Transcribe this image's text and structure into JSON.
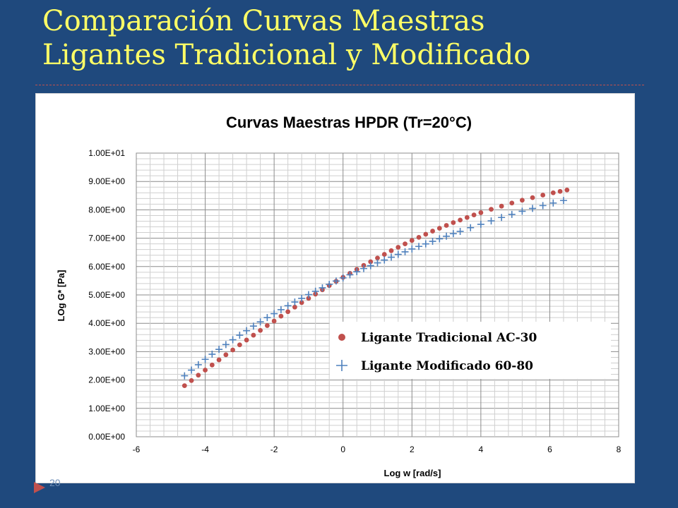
{
  "slide": {
    "title_line1": "Comparación Curvas Maestras",
    "title_line2": "Ligantes Tradicional y Modificado",
    "page_number": "20",
    "colors": {
      "background": "#1f497d",
      "title": "#ffff66",
      "accent": "#c0504d"
    }
  },
  "chart_data": {
    "type": "scatter",
    "title": "Curvas Maestras HPDR (Tr=20°C)",
    "xlabel": "Log w [rad/s]",
    "ylabel": "LOg G* [Pa]",
    "xlim": [
      -6,
      8
    ],
    "ylim": [
      0,
      10
    ],
    "x_ticks": [
      "-6",
      "-4",
      "-2",
      "0",
      "2",
      "4",
      "6",
      "8"
    ],
    "y_ticks": [
      "0.00E+00",
      "1.00E+00",
      "2.00E+00",
      "3.00E+00",
      "4.00E+00",
      "5.00E+00",
      "6.00E+00",
      "7.00E+00",
      "8.00E+00",
      "9.00E+00",
      "1.00E+01"
    ],
    "grid": true,
    "legend_position": "right-center",
    "series": [
      {
        "name": "Ligante Tradicional AC-30",
        "marker": "circle",
        "color": "#c0504d",
        "points": [
          [
            -4.6,
            1.8
          ],
          [
            -4.4,
            1.98
          ],
          [
            -4.2,
            2.17
          ],
          [
            -4.0,
            2.35
          ],
          [
            -3.8,
            2.53
          ],
          [
            -3.6,
            2.71
          ],
          [
            -3.4,
            2.89
          ],
          [
            -3.2,
            3.06
          ],
          [
            -3.0,
            3.24
          ],
          [
            -2.8,
            3.41
          ],
          [
            -2.6,
            3.58
          ],
          [
            -2.4,
            3.75
          ],
          [
            -2.2,
            3.92
          ],
          [
            -2.0,
            4.08
          ],
          [
            -1.8,
            4.25
          ],
          [
            -1.6,
            4.41
          ],
          [
            -1.4,
            4.57
          ],
          [
            -1.2,
            4.73
          ],
          [
            -1.0,
            4.88
          ],
          [
            -0.8,
            5.03
          ],
          [
            -0.6,
            5.18
          ],
          [
            -0.4,
            5.33
          ],
          [
            -0.2,
            5.48
          ],
          [
            0.0,
            5.62
          ],
          [
            0.2,
            5.76
          ],
          [
            0.4,
            5.9
          ],
          [
            0.6,
            6.04
          ],
          [
            0.8,
            6.17
          ],
          [
            1.0,
            6.3
          ],
          [
            1.2,
            6.43
          ],
          [
            1.4,
            6.56
          ],
          [
            1.6,
            6.68
          ],
          [
            1.8,
            6.8
          ],
          [
            2.0,
            6.92
          ],
          [
            2.2,
            7.03
          ],
          [
            2.4,
            7.14
          ],
          [
            2.6,
            7.25
          ],
          [
            2.8,
            7.35
          ],
          [
            3.0,
            7.45
          ],
          [
            3.2,
            7.55
          ],
          [
            3.4,
            7.64
          ],
          [
            3.6,
            7.73
          ],
          [
            3.8,
            7.82
          ],
          [
            4.0,
            7.9
          ],
          [
            4.3,
            8.02
          ],
          [
            4.6,
            8.13
          ],
          [
            4.9,
            8.24
          ],
          [
            5.2,
            8.34
          ],
          [
            5.5,
            8.43
          ],
          [
            5.8,
            8.52
          ],
          [
            6.1,
            8.6
          ],
          [
            6.3,
            8.65
          ],
          [
            6.5,
            8.7
          ]
        ]
      },
      {
        "name": "Ligante Modificado 60-80",
        "marker": "plus",
        "color": "#4f81bd",
        "points": [
          [
            -4.6,
            2.15
          ],
          [
            -4.4,
            2.35
          ],
          [
            -4.2,
            2.54
          ],
          [
            -4.0,
            2.73
          ],
          [
            -3.8,
            2.91
          ],
          [
            -3.6,
            3.08
          ],
          [
            -3.4,
            3.25
          ],
          [
            -3.2,
            3.42
          ],
          [
            -3.0,
            3.58
          ],
          [
            -2.8,
            3.74
          ],
          [
            -2.6,
            3.9
          ],
          [
            -2.4,
            4.05
          ],
          [
            -2.2,
            4.2
          ],
          [
            -2.0,
            4.34
          ],
          [
            -1.8,
            4.48
          ],
          [
            -1.6,
            4.62
          ],
          [
            -1.4,
            4.75
          ],
          [
            -1.2,
            4.88
          ],
          [
            -1.0,
            5.01
          ],
          [
            -0.8,
            5.13
          ],
          [
            -0.6,
            5.25
          ],
          [
            -0.4,
            5.37
          ],
          [
            -0.2,
            5.49
          ],
          [
            0.0,
            5.6
          ],
          [
            0.2,
            5.71
          ],
          [
            0.4,
            5.82
          ],
          [
            0.6,
            5.93
          ],
          [
            0.8,
            6.03
          ],
          [
            1.0,
            6.13
          ],
          [
            1.2,
            6.23
          ],
          [
            1.4,
            6.33
          ],
          [
            1.6,
            6.43
          ],
          [
            1.8,
            6.52
          ],
          [
            2.0,
            6.62
          ],
          [
            2.2,
            6.71
          ],
          [
            2.4,
            6.8
          ],
          [
            2.6,
            6.89
          ],
          [
            2.8,
            6.98
          ],
          [
            3.0,
            7.07
          ],
          [
            3.2,
            7.16
          ],
          [
            3.4,
            7.24
          ],
          [
            3.7,
            7.37
          ],
          [
            4.0,
            7.49
          ],
          [
            4.3,
            7.61
          ],
          [
            4.6,
            7.73
          ],
          [
            4.9,
            7.84
          ],
          [
            5.2,
            7.95
          ],
          [
            5.5,
            8.05
          ],
          [
            5.8,
            8.15
          ],
          [
            6.1,
            8.24
          ],
          [
            6.4,
            8.33
          ]
        ]
      }
    ]
  }
}
